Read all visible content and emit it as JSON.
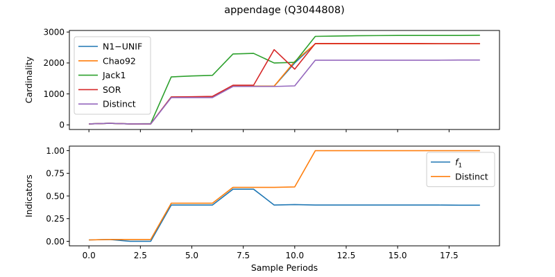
{
  "title": "appendage (Q3044808)",
  "chart_data": [
    {
      "type": "line",
      "ylabel": "Cardinality",
      "xlabel": "",
      "xlim": [
        -0.95,
        19.95
      ],
      "ylim": [
        -150,
        3050
      ],
      "xticks": [
        0,
        2.5,
        5,
        7.5,
        10,
        12.5,
        15,
        17.5
      ],
      "xtick_labels_visible": false,
      "yticks": [
        0,
        1000,
        2000,
        3000
      ],
      "ytick_labels": [
        "0",
        "1000",
        "2000",
        "3000"
      ],
      "legend_position": "upper-left",
      "x": [
        0,
        1,
        2,
        3,
        4,
        5,
        6,
        7,
        8,
        9,
        10,
        11,
        12,
        13,
        14,
        15,
        16,
        17,
        18,
        19
      ],
      "series": [
        {
          "name": "N1−UNIF",
          "color": "#1f77b4",
          "values": [
            30,
            50,
            30,
            30,
            900,
            900,
            900,
            1250,
            1250,
            1250,
            2000,
            2620,
            2620,
            2620,
            2620,
            2620,
            2620,
            2620,
            2620,
            2620
          ]
        },
        {
          "name": "Chao92",
          "color": "#ff7f0e",
          "values": [
            30,
            50,
            30,
            30,
            900,
            900,
            900,
            1250,
            1250,
            1250,
            2050,
            2620,
            2620,
            2620,
            2620,
            2620,
            2620,
            2620,
            2620,
            2620
          ]
        },
        {
          "name": "Jack1",
          "color": "#2ca02c",
          "values": [
            30,
            50,
            30,
            40,
            1550,
            1580,
            1600,
            2290,
            2310,
            2000,
            2020,
            2860,
            2870,
            2880,
            2885,
            2890,
            2890,
            2890,
            2890,
            2895
          ]
        },
        {
          "name": "SOR",
          "color": "#d62728",
          "values": [
            30,
            50,
            30,
            30,
            900,
            910,
            920,
            1280,
            1280,
            2430,
            1800,
            2630,
            2630,
            2630,
            2630,
            2630,
            2630,
            2625,
            2625,
            2625
          ]
        },
        {
          "name": "Distinct",
          "color": "#9467bd",
          "values": [
            30,
            50,
            30,
            30,
            880,
            880,
            880,
            1240,
            1240,
            1240,
            1260,
            2090,
            2090,
            2090,
            2090,
            2090,
            2090,
            2090,
            2095,
            2095
          ]
        }
      ]
    },
    {
      "type": "line",
      "ylabel": "Indicators",
      "xlabel": "Sample Periods",
      "xlim": [
        -0.95,
        19.95
      ],
      "ylim": [
        -0.05,
        1.05
      ],
      "xticks": [
        0,
        2.5,
        5,
        7.5,
        10,
        12.5,
        15,
        17.5
      ],
      "xtick_labels": [
        "0.0",
        "2.5",
        "5.0",
        "7.5",
        "10.0",
        "12.5",
        "15.0",
        "17.5"
      ],
      "yticks": [
        0,
        0.25,
        0.5,
        0.75,
        1.0
      ],
      "ytick_labels": [
        "0.00",
        "0.25",
        "0.50",
        "0.75",
        "1.00"
      ],
      "legend_position": "upper-right",
      "x": [
        0,
        1,
        2,
        3,
        4,
        5,
        6,
        7,
        8,
        9,
        10,
        11,
        12,
        13,
        14,
        15,
        16,
        17,
        18,
        19
      ],
      "series": [
        {
          "name": "f1",
          "color": "#1f77b4",
          "values": [
            0.015,
            0.02,
            0.0,
            0.0,
            0.4,
            0.4,
            0.4,
            0.575,
            0.575,
            0.4,
            0.405,
            0.4,
            0.4,
            0.4,
            0.4,
            0.4,
            0.4,
            0.4,
            0.398,
            0.398
          ]
        },
        {
          "name": "Distinct",
          "color": "#ff7f0e",
          "values": [
            0.015,
            0.02,
            0.02,
            0.02,
            0.42,
            0.42,
            0.42,
            0.595,
            0.595,
            0.595,
            0.6,
            1.0,
            1.0,
            1.0,
            1.0,
            1.0,
            1.0,
            1.0,
            1.0,
            1.0
          ]
        }
      ]
    }
  ]
}
